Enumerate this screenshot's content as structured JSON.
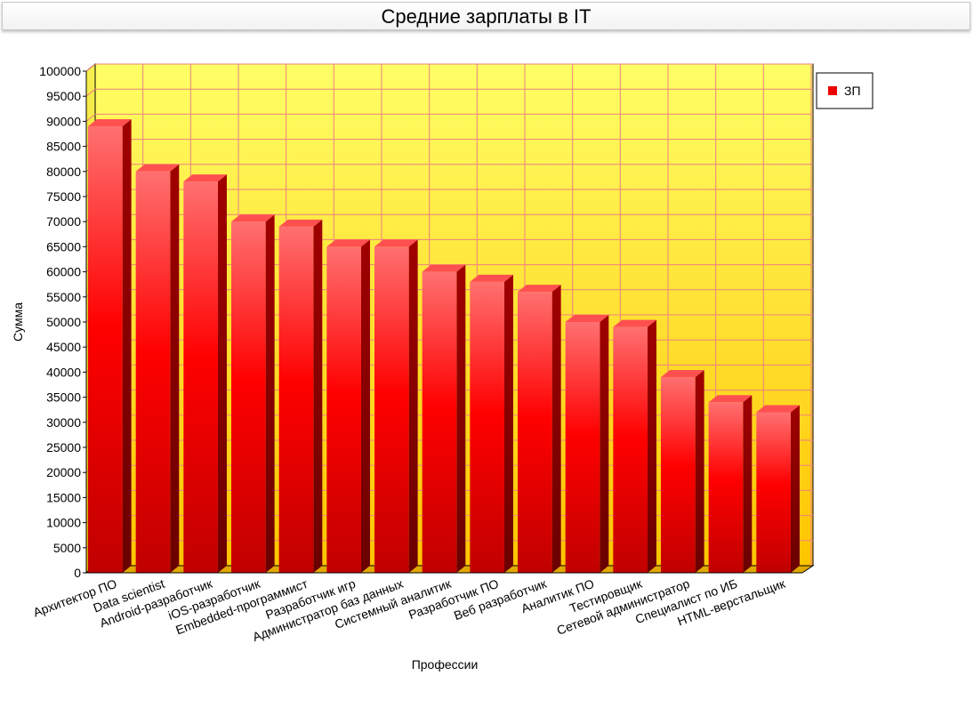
{
  "chart_data": {
    "type": "bar",
    "title": "Средние зарплаты в IT",
    "xlabel": "Профессии",
    "ylabel": "Сумма",
    "ylim": [
      0,
      100000
    ],
    "ytick_step": 5000,
    "grid": true,
    "legend_position": "top-right",
    "categories": [
      "Архитектор ПО",
      "Data scientist",
      "Android-разработчик",
      "iOS-разработчик",
      "Embedded-программист",
      "Разработчик игр",
      "Администратор баз данных",
      "Системный аналитик",
      "Разработчик ПО",
      "Веб разработчик",
      "Аналитик ПО",
      "Тестировщик",
      "Сетевой администратор",
      "Специалист по ИБ",
      "HTML-верстальщик"
    ],
    "series": [
      {
        "name": "ЗП",
        "color": "#ee0000",
        "values": [
          89000,
          80000,
          78000,
          70000,
          69000,
          65000,
          65000,
          60000,
          58000,
          56000,
          50000,
          49000,
          39000,
          34000,
          32000
        ]
      }
    ],
    "colors": {
      "background_top": "#ffff66",
      "background_bottom": "#ffc800",
      "grid": "#f08080",
      "bar": "#ee0000"
    }
  }
}
